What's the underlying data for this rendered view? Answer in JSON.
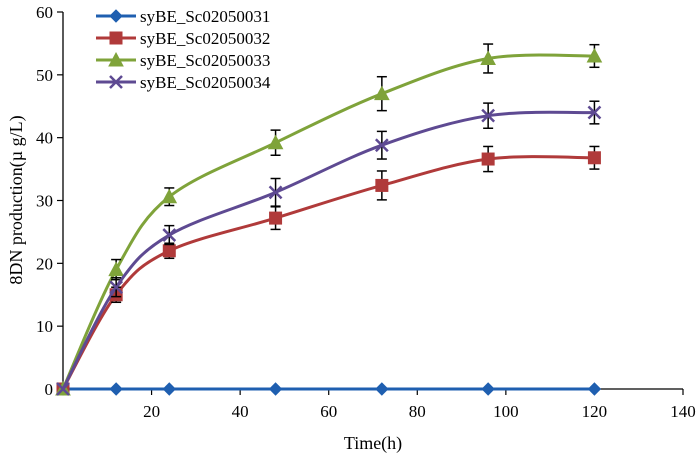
{
  "chart_data": {
    "type": "line",
    "title": "",
    "xlabel": "Time(h)",
    "ylabel": "8DN production(µ g/L)",
    "xlim": [
      0,
      140
    ],
    "ylim": [
      0,
      60
    ],
    "xticks": [
      20,
      40,
      60,
      80,
      100,
      120,
      140
    ],
    "yticks": [
      0,
      10,
      20,
      30,
      40,
      50,
      60
    ],
    "grid": false,
    "legend_position": "top-left",
    "x": [
      0,
      12,
      24,
      48,
      72,
      96,
      120
    ],
    "series": [
      {
        "name": "syBE_Sc02050031",
        "color": "#1f5fb0",
        "marker": "diamond",
        "values": [
          0,
          0,
          0,
          0,
          0,
          0,
          0
        ],
        "errors": [
          0,
          0,
          0,
          0,
          0,
          0,
          0
        ]
      },
      {
        "name": "syBE_Sc02050032",
        "color": "#b03a3a",
        "marker": "square",
        "values": [
          0,
          15,
          22,
          27.2,
          32.4,
          36.6,
          36.8
        ],
        "errors": [
          0,
          1.2,
          1.2,
          1.8,
          2.3,
          2.0,
          1.8
        ]
      },
      {
        "name": "syBE_Sc02050033",
        "color": "#7fa33a",
        "marker": "triangle",
        "values": [
          0,
          19,
          30.6,
          39.2,
          47,
          52.6,
          53
        ],
        "errors": [
          0,
          1.6,
          1.4,
          2.0,
          2.7,
          2.3,
          1.8
        ]
      },
      {
        "name": "syBE_Sc02050034",
        "color": "#5e4a92",
        "marker": "x",
        "values": [
          0,
          16.2,
          24.5,
          31.3,
          38.8,
          43.5,
          44
        ],
        "errors": [
          0,
          1.5,
          1.5,
          2.2,
          2.2,
          2.0,
          1.8
        ]
      }
    ]
  }
}
